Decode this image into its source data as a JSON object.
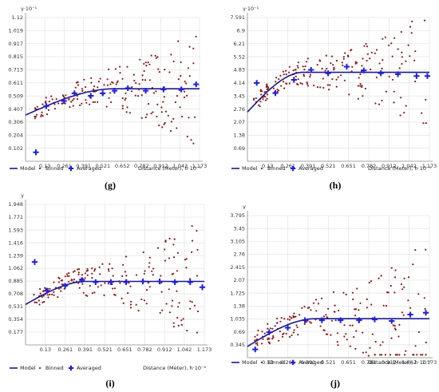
{
  "legend": {
    "model": "Model",
    "binned": "Binned",
    "averaged": "Averaged"
  },
  "colors": {
    "model": "#1a1a8c",
    "binned": "#8b1a1a",
    "averaged": "#1f1fe0",
    "grid": "#dedede",
    "axis": "#888888"
  },
  "chart_data": [
    {
      "type": "scatter",
      "panel_label": "(g)",
      "ylabel": "γ·10⁻¹",
      "xlabel": "Distance (Meter), h·10⁻⁴",
      "xlim": [
        0,
        1.173
      ],
      "ylim": [
        0,
        1.12
      ],
      "xticks": [
        "0.13",
        "0.261",
        "0.391",
        "0.521",
        "0.652",
        "0.782",
        "0.912",
        "1.043",
        "1.173"
      ],
      "yticks": [
        "0.102",
        "0.204",
        "0.306",
        "0.407",
        "0.509",
        "0.611",
        "0.713",
        "0.815",
        "0.917",
        "1.019",
        "1.12"
      ],
      "model": {
        "nugget": 0.36,
        "sill": 0.565,
        "range": 0.6
      },
      "averaged": [
        [
          0.07,
          0.07
        ],
        [
          0.14,
          0.43
        ],
        [
          0.26,
          0.47
        ],
        [
          0.33,
          0.53
        ],
        [
          0.44,
          0.51
        ],
        [
          0.52,
          0.53
        ],
        [
          0.6,
          0.55
        ],
        [
          0.69,
          0.57
        ],
        [
          0.81,
          0.55
        ],
        [
          0.93,
          0.56
        ],
        [
          1.05,
          0.56
        ],
        [
          1.15,
          0.6
        ]
      ],
      "binned_spread": [
        0.36,
        1.12
      ],
      "seed": 11
    },
    {
      "type": "scatter",
      "panel_label": "(h)",
      "ylabel": "γ·10⁻¹",
      "xlabel": "Distance (Meter), h·10⁻⁴",
      "xlim": [
        0,
        1.173
      ],
      "ylim": [
        0,
        7.591
      ],
      "xticks": [
        "0.13",
        "0.261",
        "0.391",
        "0.521",
        "0.651",
        "0.782",
        "0.912",
        "1.042",
        "1.173"
      ],
      "yticks": [
        "0.69",
        "1.38",
        "2.07",
        "2.76",
        "3.45",
        "4.14",
        "4.83",
        "5.52",
        "6.21",
        "6.9",
        "7.591"
      ],
      "model": {
        "nugget": 2.6,
        "sill": 4.7,
        "range": 0.36
      },
      "averaged": [
        [
          0.06,
          4.14
        ],
        [
          0.18,
          3.6
        ],
        [
          0.3,
          4.3
        ],
        [
          0.41,
          4.83
        ],
        [
          0.52,
          4.65
        ],
        [
          0.64,
          5.0
        ],
        [
          0.75,
          4.8
        ],
        [
          0.86,
          4.65
        ],
        [
          0.97,
          4.6
        ],
        [
          1.09,
          4.5
        ],
        [
          1.16,
          4.5
        ]
      ],
      "binned_spread": [
        2.4,
        7.59
      ],
      "seed": 23
    },
    {
      "type": "scatter",
      "panel_label": "(i)",
      "ylabel": "γ",
      "xlabel": "Distance (Meter), h·10⁻⁴",
      "xlim": [
        0,
        1.173
      ],
      "ylim": [
        0,
        1.948
      ],
      "xticks": [
        "0.13",
        "0.261",
        "0.391",
        "0.521",
        "0.651",
        "0.782",
        "0.912",
        "1.042",
        "1.173"
      ],
      "yticks": [
        "0.177",
        "0.354",
        "0.531",
        "0.708",
        "0.885",
        "1.062",
        "1.239",
        "1.416",
        "1.593",
        "1.771",
        "1.948"
      ],
      "model": {
        "nugget": 0.56,
        "sill": 0.88,
        "range": 0.4
      },
      "averaged": [
        [
          0.06,
          1.15
        ],
        [
          0.14,
          0.75
        ],
        [
          0.26,
          0.82
        ],
        [
          0.37,
          0.9
        ],
        [
          0.46,
          0.87
        ],
        [
          0.56,
          0.87
        ],
        [
          0.66,
          0.87
        ],
        [
          0.77,
          0.88
        ],
        [
          0.88,
          0.88
        ],
        [
          0.98,
          0.87
        ],
        [
          1.08,
          0.87
        ],
        [
          1.16,
          0.8
        ]
      ],
      "binned_spread": [
        0.55,
        1.948
      ],
      "seed": 37
    },
    {
      "type": "scatter",
      "panel_label": "(j)",
      "ylabel": "γ",
      "xlabel": "Distance (Meter), h·10⁻⁴",
      "xlim": [
        0,
        1.173
      ],
      "ylim": [
        0,
        3.795
      ],
      "xticks": [
        "0.13",
        "0.261",
        "0.391",
        "0.521",
        "0.651",
        "0.782",
        "0.912",
        "1.042",
        "1.173"
      ],
      "yticks": [
        "0.345",
        "0.69",
        "1.035",
        "1.38",
        "1.725",
        "2.07",
        "2.415",
        "2.76",
        "3.105",
        "3.45",
        "3.795"
      ],
      "model": {
        "nugget": 0.3,
        "sill": 1.04,
        "range": 0.44
      },
      "averaged": [
        [
          0.05,
          0.22
        ],
        [
          0.14,
          0.68
        ],
        [
          0.26,
          0.8
        ],
        [
          0.37,
          1.0
        ],
        [
          0.48,
          1.0
        ],
        [
          0.6,
          1.0
        ],
        [
          0.72,
          1.0
        ],
        [
          0.82,
          1.02
        ],
        [
          0.93,
          0.98
        ],
        [
          1.05,
          1.15
        ],
        [
          1.15,
          1.2
        ]
      ],
      "binned_spread": [
        0.3,
        3.795
      ],
      "seed": 53
    }
  ]
}
